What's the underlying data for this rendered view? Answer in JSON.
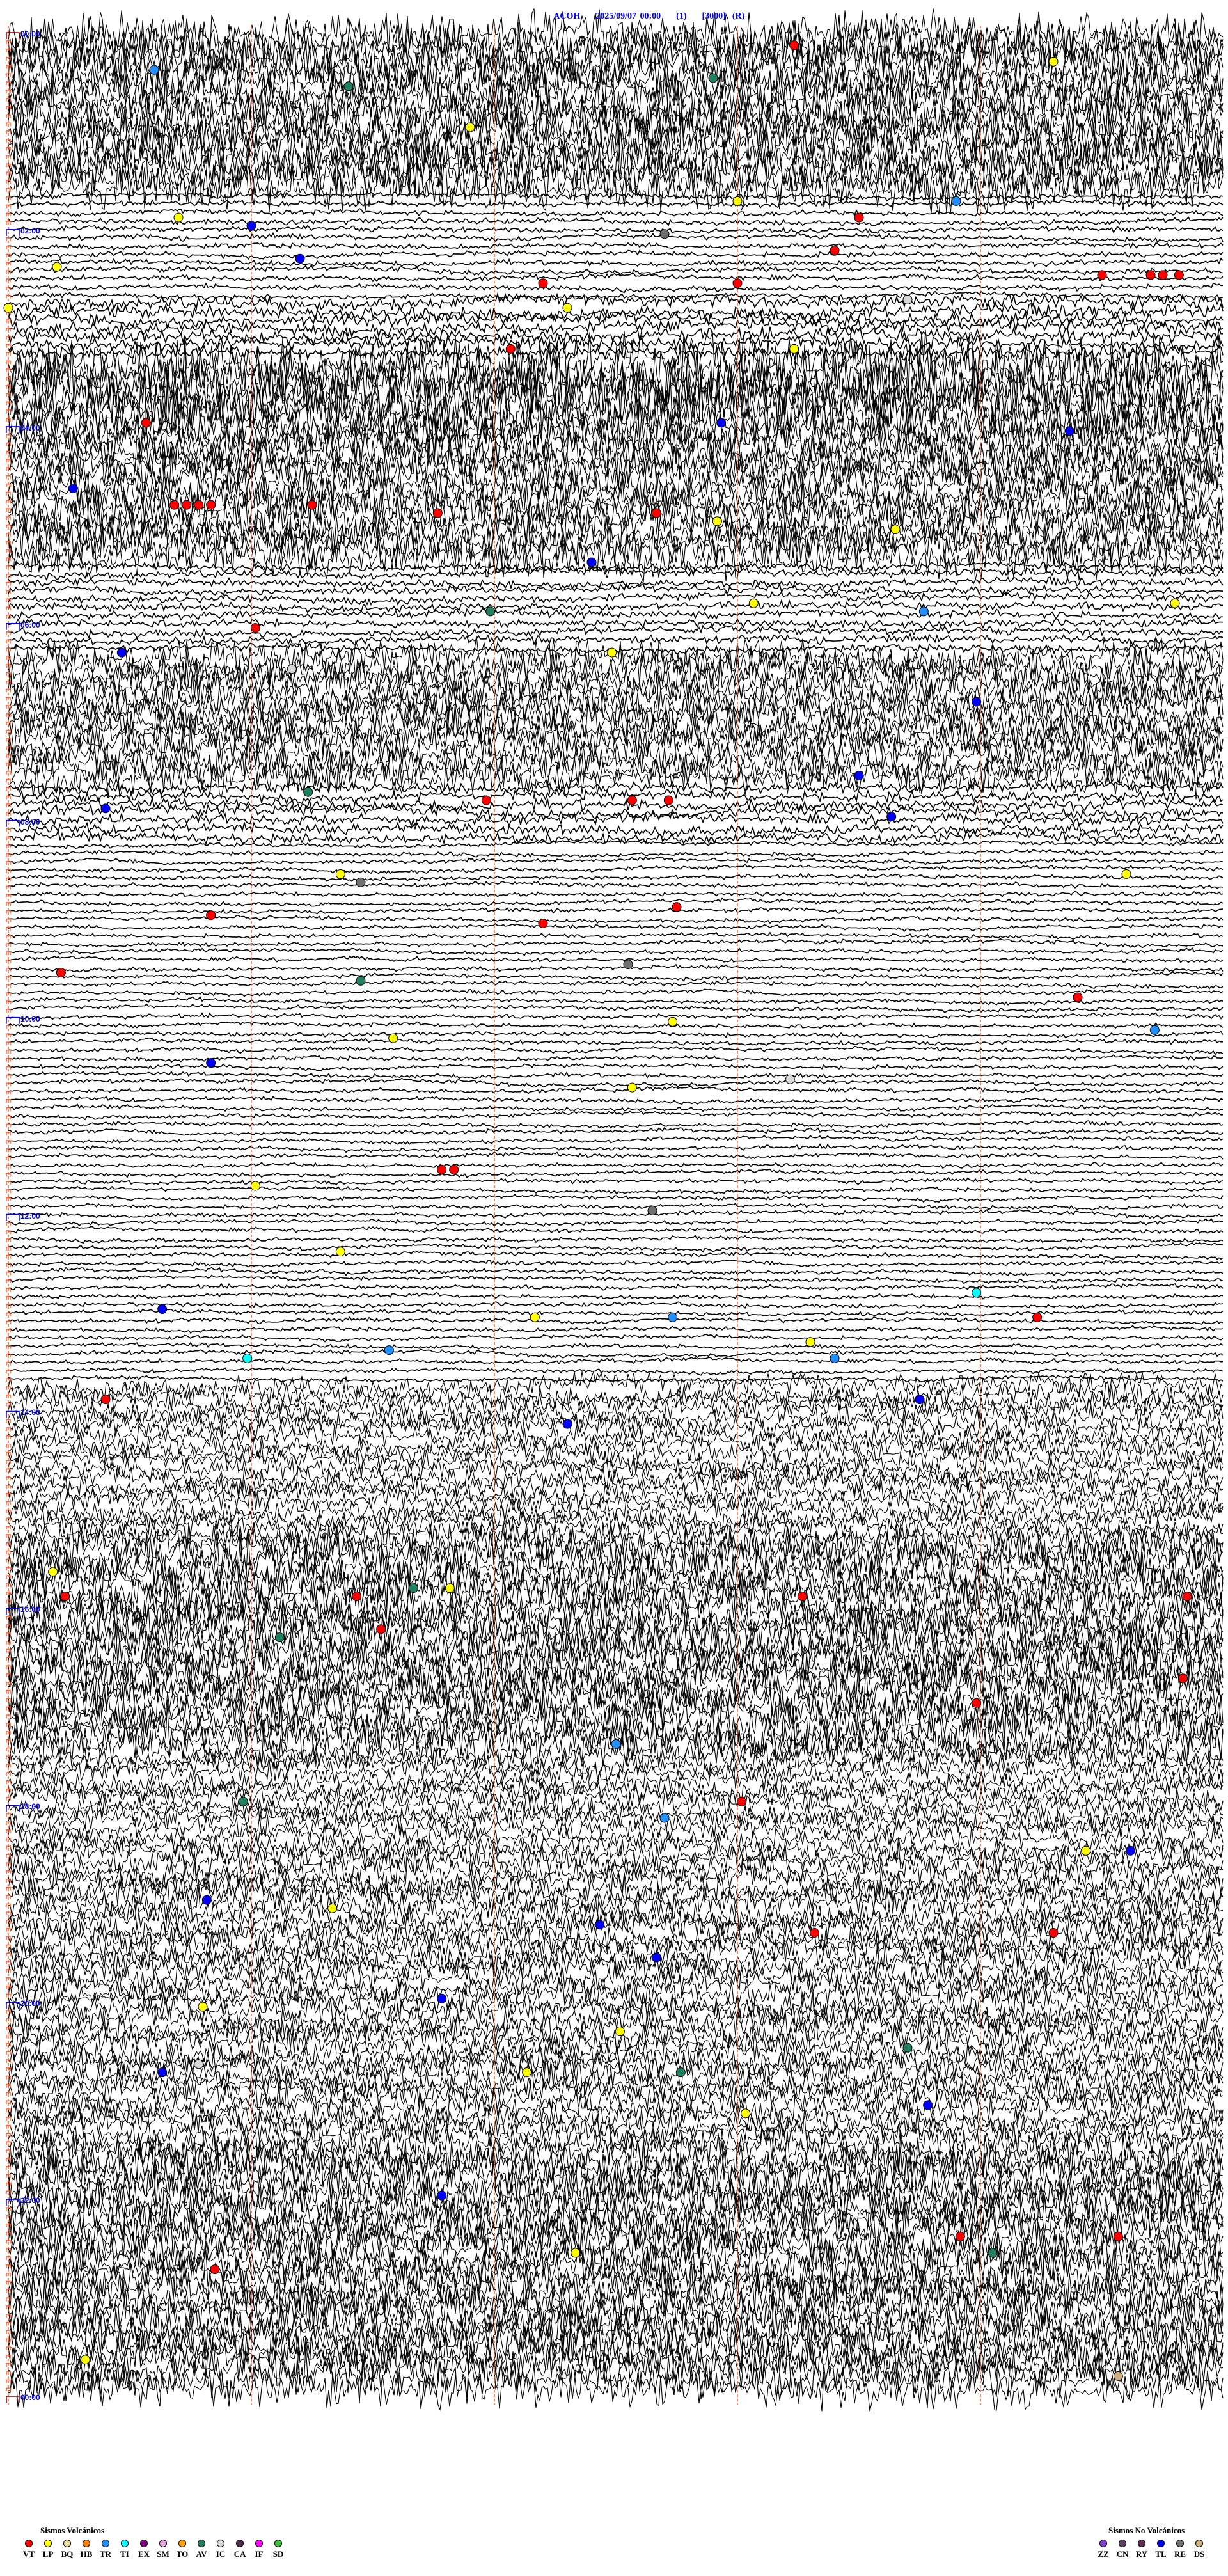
{
  "header": {
    "station": "ACOH",
    "datetime": "2025/09/07 00:00",
    "channel": "(1)",
    "scale": "[3000]",
    "mode": "(R)"
  },
  "chart_data": {
    "type": "helicorder",
    "row_minutes": 5,
    "minute_gridlines": [
      0,
      1,
      2,
      3,
      4
    ],
    "hour_labels": [
      "00:00",
      "02:00",
      "04:00",
      "06:00",
      "08:00",
      "10:00",
      "12:00",
      "14:00",
      "16:00",
      "18:00",
      "20:00",
      "22:00",
      "00:00"
    ],
    "events": [
      {
        "t": "00:13:14",
        "type": "VT"
      },
      {
        "t": "00:25:36",
        "type": "TR"
      },
      {
        "t": "00:36:24",
        "type": "AV"
      },
      {
        "t": "00:24:18",
        "type": "LP"
      },
      {
        "t": "01:01:54",
        "type": "LP"
      },
      {
        "t": "00:32:54",
        "type": "AV"
      },
      {
        "t": "01:55:42",
        "type": "LP"
      },
      {
        "t": "02:01:00",
        "type": "TL"
      },
      {
        "t": "02:25:12",
        "type": "LP"
      },
      {
        "t": "02:21:12",
        "type": "TL"
      },
      {
        "t": "02:07:42",
        "type": "RE"
      },
      {
        "t": "01:48:00",
        "type": "LP"
      },
      {
        "t": "01:58:30",
        "type": "VT"
      },
      {
        "t": "01:48:54",
        "type": "TR"
      },
      {
        "t": "02:18:24",
        "type": "VT"
      },
      {
        "t": "02:37:12",
        "type": "VT"
      },
      {
        "t": "02:38:00",
        "type": "VT"
      },
      {
        "t": "02:34:30",
        "type": "VT"
      },
      {
        "t": "02:34:42",
        "type": "VT"
      },
      {
        "t": "02:34:45",
        "type": "VT"
      },
      {
        "t": "02:34:49",
        "type": "VT"
      },
      {
        "t": "02:52:18",
        "type": "LP"
      },
      {
        "t": "02:48:42",
        "type": "IC"
      },
      {
        "t": "02:50:00",
        "type": "LP"
      },
      {
        "t": "03:17:04",
        "type": "VT"
      },
      {
        "t": "03:18:14",
        "type": "LP"
      },
      {
        "t": "04:00:34",
        "type": "VT"
      },
      {
        "t": "04:02:56",
        "type": "TL"
      },
      {
        "t": "04:09:22",
        "type": "TL"
      },
      {
        "t": "04:40:16",
        "type": "TL"
      },
      {
        "t": "04:50:41",
        "type": "VT"
      },
      {
        "t": "04:50:44",
        "type": "VT"
      },
      {
        "t": "04:50:47",
        "type": "VT"
      },
      {
        "t": "04:50:50",
        "type": "VT"
      },
      {
        "t": "04:51:15",
        "type": "VT"
      },
      {
        "t": "04:56:46",
        "type": "VT"
      },
      {
        "t": "04:57:40",
        "type": "VT"
      },
      {
        "t": "05:02:55",
        "type": "LP"
      },
      {
        "t": "05:08:39",
        "type": "LP"
      },
      {
        "t": "05:27:24",
        "type": "TL"
      },
      {
        "t": "05:56:59",
        "type": "AV"
      },
      {
        "t": "06:06:01",
        "type": "VT"
      },
      {
        "t": "05:53:04",
        "type": "LP"
      },
      {
        "t": "05:58:46",
        "type": "TR"
      },
      {
        "t": "05:54:48",
        "type": "LP"
      },
      {
        "t": "06:20:28",
        "type": "TL"
      },
      {
        "t": "06:31:10",
        "type": "IC"
      },
      {
        "t": "06:22:29",
        "type": "LP"
      },
      {
        "t": "06:53:59",
        "type": "TL"
      },
      {
        "t": "07:38:30",
        "type": "TL"
      },
      {
        "t": "07:46:14",
        "type": "AV"
      },
      {
        "t": "07:55:24",
        "type": "TL"
      },
      {
        "t": "07:51:58",
        "type": "VT"
      },
      {
        "t": "07:52:34",
        "type": "VT"
      },
      {
        "t": "07:52:43",
        "type": "VT"
      },
      {
        "t": "08:03:38",
        "type": "TL"
      },
      {
        "t": "08:36:22",
        "type": "LP"
      },
      {
        "t": "08:41:27",
        "type": "RE"
      },
      {
        "t": "09:07:12",
        "type": "VT"
      },
      {
        "t": "08:57:45",
        "type": "VT"
      },
      {
        "t": "08:39:36",
        "type": "LP"
      },
      {
        "t": "09:00:50",
        "type": "VT"
      },
      {
        "t": "09:35:13",
        "type": "VT"
      },
      {
        "t": "09:41:27",
        "type": "AV"
      },
      {
        "t": "09:32:33",
        "type": "RE"
      },
      {
        "t": "09:54:24",
        "type": "VT"
      },
      {
        "t": "10:16:35",
        "type": "LP"
      },
      {
        "t": "10:07:44",
        "type": "LP"
      },
      {
        "t": "10:14:43",
        "type": "TR"
      },
      {
        "t": "10:30:50",
        "type": "TL"
      },
      {
        "t": "10:43:13",
        "type": "IC"
      },
      {
        "t": "10:47:34",
        "type": "LP"
      },
      {
        "t": "11:36:47",
        "type": "VT"
      },
      {
        "t": "11:36:50",
        "type": "VT"
      },
      {
        "t": "11:46:01",
        "type": "LP"
      },
      {
        "t": "12:02:39",
        "type": "RE"
      },
      {
        "t": "12:26:22",
        "type": "LP"
      },
      {
        "t": "13:00:38",
        "type": "TL"
      },
      {
        "t": "13:07:10",
        "type": "LP"
      },
      {
        "t": "13:07:44",
        "type": "TR"
      },
      {
        "t": "12:53:59",
        "type": "TI"
      },
      {
        "t": "13:09:14",
        "type": "VT"
      },
      {
        "t": "13:30:59",
        "type": "TI"
      },
      {
        "t": "13:26:34",
        "type": "TR"
      },
      {
        "t": "13:33:24",
        "type": "TR"
      },
      {
        "t": "13:23:18",
        "type": "LP"
      },
      {
        "t": "13:58:45",
        "type": "TL"
      },
      {
        "t": "13:55:24",
        "type": "VT"
      },
      {
        "t": "14:12:18",
        "type": "TL"
      },
      {
        "t": "15:40:11",
        "type": "LP"
      },
      {
        "t": "15:55:14",
        "type": "VT"
      },
      {
        "t": "15:56:26",
        "type": "VT"
      },
      {
        "t": "15:51:40",
        "type": "AV"
      },
      {
        "t": "15:51:49",
        "type": "LP"
      },
      {
        "t": "15:58:16",
        "type": "VT"
      },
      {
        "t": "15:59:51",
        "type": "VT"
      },
      {
        "t": "16:21:07",
        "type": "AV"
      },
      {
        "t": "16:16:32",
        "type": "VT"
      },
      {
        "t": "16:49:50",
        "type": "VT"
      },
      {
        "t": "17:03:59",
        "type": "VT"
      },
      {
        "t": "17:27:30",
        "type": "TR"
      },
      {
        "t": "18:00:58",
        "type": "AV"
      },
      {
        "t": "18:12:42",
        "type": "TR"
      },
      {
        "t": "18:03:01",
        "type": "VT"
      },
      {
        "t": "18:34:26",
        "type": "LP"
      },
      {
        "t": "18:34:37",
        "type": "TL"
      },
      {
        "t": "19:00:49",
        "type": "TL"
      },
      {
        "t": "19:06:20",
        "type": "LP"
      },
      {
        "t": "19:23:19",
        "type": "VT"
      },
      {
        "t": "19:24:18",
        "type": "VT"
      },
      {
        "t": "19:37:40",
        "type": "TL"
      },
      {
        "t": "19:17:26",
        "type": "TL"
      },
      {
        "t": "20:01:47",
        "type": "TL"
      },
      {
        "t": "20:22:31",
        "type": "LP"
      },
      {
        "t": "20:05:48",
        "type": "LP"
      },
      {
        "t": "20:33:42",
        "type": "AV"
      },
      {
        "t": "20:45:38",
        "type": "TL"
      },
      {
        "t": "20:40:47",
        "type": "IC"
      },
      {
        "t": "20:47:08",
        "type": "LP"
      },
      {
        "t": "20:47:46",
        "type": "AV"
      },
      {
        "t": "21:08:47",
        "type": "TL"
      },
      {
        "t": "21:13:02",
        "type": "LP"
      },
      {
        "t": "22:01:47",
        "type": "TL"
      },
      {
        "t": "22:28:55",
        "type": "VT"
      },
      {
        "t": "22:29:34",
        "type": "VT"
      },
      {
        "t": "22:37:20",
        "type": "LP"
      },
      {
        "t": "22:39:03",
        "type": "AV"
      },
      {
        "t": "22:45:51",
        "type": "VT"
      },
      {
        "t": "23:40:19",
        "type": "LP"
      },
      {
        "t": "23:54:34",
        "type": "DS"
      }
    ]
  },
  "legend_volcanic": {
    "title": "Sismos Volcánicos",
    "items": [
      {
        "code": "VT",
        "color": "#ff0000"
      },
      {
        "code": "LP",
        "color": "#ffff00"
      },
      {
        "code": "BQ",
        "color": "#f0e0a0"
      },
      {
        "code": "HB",
        "color": "#ff8000"
      },
      {
        "code": "TR",
        "color": "#2090ff"
      },
      {
        "code": "TI",
        "color": "#00ffff"
      },
      {
        "code": "EX",
        "color": "#800080"
      },
      {
        "code": "SM",
        "color": "#e8a8e0"
      },
      {
        "code": "TO",
        "color": "#ffa000"
      },
      {
        "code": "AV",
        "color": "#208060"
      },
      {
        "code": "IC",
        "color": "#d8d8d8"
      },
      {
        "code": "CA",
        "color": "#503050"
      },
      {
        "code": "IF",
        "color": "#ff00ff"
      },
      {
        "code": "SD",
        "color": "#40c040"
      }
    ]
  },
  "legend_nonvolcanic": {
    "title": "Sismos No Volcánicos",
    "items": [
      {
        "code": "ZZ",
        "color": "#8040d0"
      },
      {
        "code": "CN",
        "color": "#604060"
      },
      {
        "code": "RY",
        "color": "#603050"
      },
      {
        "code": "TL",
        "color": "#0000ff"
      },
      {
        "code": "RE",
        "color": "#707070"
      },
      {
        "code": "DS",
        "color": "#d0b080"
      }
    ]
  },
  "colors": {
    "trace": "#000000",
    "gridline": "#ff6030",
    "label": "#0000ff",
    "first_marker": "#8b0000"
  }
}
